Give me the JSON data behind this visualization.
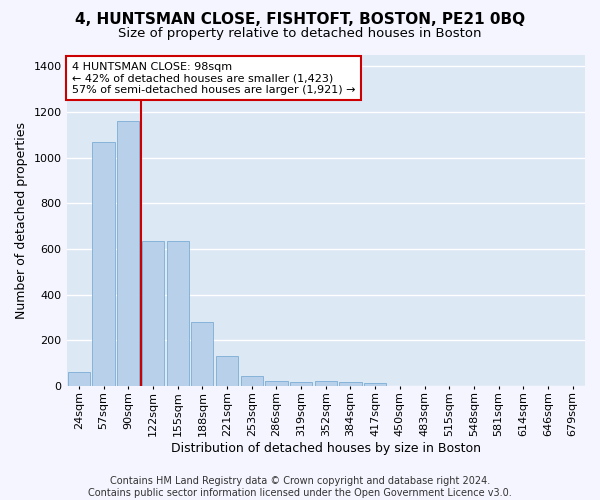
{
  "title": "4, HUNTSMAN CLOSE, FISHTOFT, BOSTON, PE21 0BQ",
  "subtitle": "Size of property relative to detached houses in Boston",
  "xlabel": "Distribution of detached houses by size in Boston",
  "ylabel": "Number of detached properties",
  "footnote": "Contains HM Land Registry data © Crown copyright and database right 2024.\nContains public sector information licensed under the Open Government Licence v3.0.",
  "categories": [
    "24sqm",
    "57sqm",
    "90sqm",
    "122sqm",
    "155sqm",
    "188sqm",
    "221sqm",
    "253sqm",
    "286sqm",
    "319sqm",
    "352sqm",
    "384sqm",
    "417sqm",
    "450sqm",
    "483sqm",
    "515sqm",
    "548sqm",
    "581sqm",
    "614sqm",
    "646sqm",
    "679sqm"
  ],
  "values": [
    62,
    1068,
    1160,
    635,
    635,
    280,
    130,
    45,
    22,
    18,
    22,
    18,
    12,
    0,
    0,
    0,
    0,
    0,
    0,
    0,
    0
  ],
  "bar_color": "#b8d0ea",
  "bar_edge_color": "#7aadd4",
  "highlight_line_color": "#cc0000",
  "highlight_line_index": 2,
  "annotation_text": "4 HUNTSMAN CLOSE: 98sqm\n← 42% of detached houses are smaller (1,423)\n57% of semi-detached houses are larger (1,921) →",
  "annotation_box_color": "#cc0000",
  "ylim": [
    0,
    1450
  ],
  "yticks": [
    0,
    200,
    400,
    600,
    800,
    1000,
    1200,
    1400
  ],
  "background_color": "#dde8f5",
  "fig_background_color": "#f5f5ff",
  "grid_color": "#ffffff",
  "title_fontsize": 11,
  "subtitle_fontsize": 9.5,
  "axis_label_fontsize": 9,
  "tick_fontsize": 8,
  "footnote_fontsize": 7,
  "annotation_fontsize": 8
}
